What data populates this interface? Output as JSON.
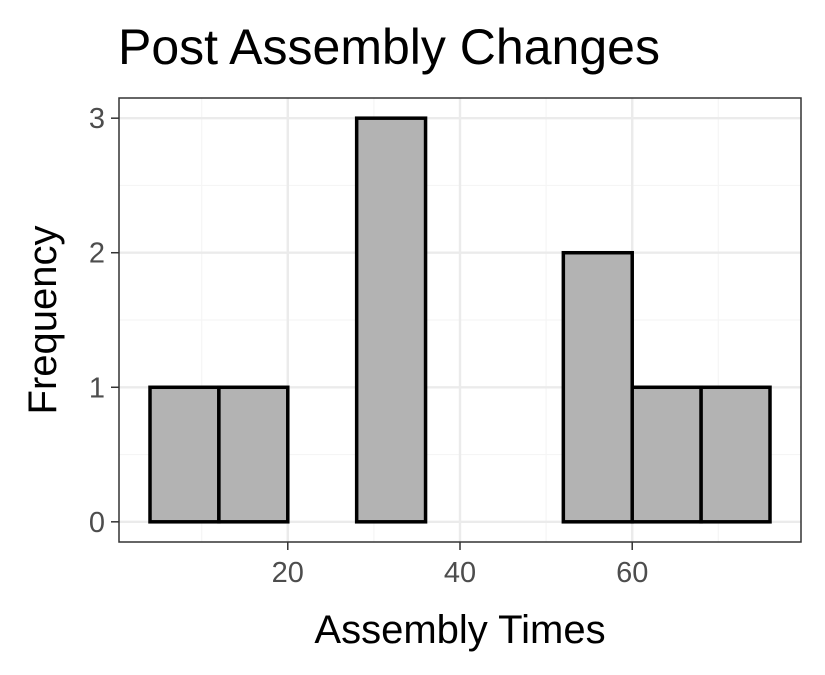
{
  "chart_data": {
    "type": "bar",
    "title": "Post Assembly Changes",
    "xlabel": "Assembly Times",
    "ylabel": "Frequency",
    "bins": [
      {
        "x0": 4,
        "x1": 12,
        "count": 1
      },
      {
        "x0": 12,
        "x1": 20,
        "count": 1
      },
      {
        "x0": 20,
        "x1": 28,
        "count": 0
      },
      {
        "x0": 28,
        "x1": 36,
        "count": 3
      },
      {
        "x0": 36,
        "x1": 44,
        "count": 0
      },
      {
        "x0": 44,
        "x1": 52,
        "count": 0
      },
      {
        "x0": 52,
        "x1": 60,
        "count": 2
      },
      {
        "x0": 60,
        "x1": 68,
        "count": 1
      },
      {
        "x0": 68,
        "x1": 76,
        "count": 1
      }
    ],
    "xlim": [
      0.4,
      79.6
    ],
    "ylim": [
      -0.15,
      3.15
    ],
    "x_ticks": [
      20,
      40,
      60
    ],
    "y_ticks": [
      0,
      1,
      2,
      3
    ],
    "grid": true,
    "bar_fill": "#b3b3b3",
    "bar_stroke": "#000000",
    "grid_major_color": "#ebebeb",
    "grid_minor_color": "#f5f5f5",
    "panel_border_color": "#333333"
  }
}
